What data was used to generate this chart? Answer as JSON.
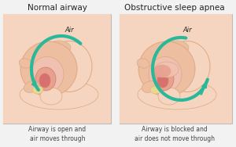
{
  "bg_color": "#f2f2f2",
  "panel_bg": "#ffffff",
  "panel_border": "#bbbbbb",
  "title_left": "Normal airway",
  "title_right": "Obstructive sleep apnea",
  "caption_left": "Airway is open and\nair moves through",
  "caption_right": "Airway is blocked and\nair does not move through",
  "air_label": "Air",
  "teal": "#2ab89a",
  "teal_light": "#7fd9c4",
  "skin_pale": "#f5d5c0",
  "skin_light": "#edbe9f",
  "skin_mid": "#dea882",
  "skin_dark": "#c98060",
  "skin_back": "#e8c0a0",
  "pink_tissue": "#d97070",
  "pink_light": "#e8a090",
  "pink_pale": "#f0c0b0",
  "cream": "#f0e8d8",
  "cream_dark": "#d8c8b0",
  "text_dark": "#222222",
  "text_mid": "#444444",
  "white": "#ffffff"
}
